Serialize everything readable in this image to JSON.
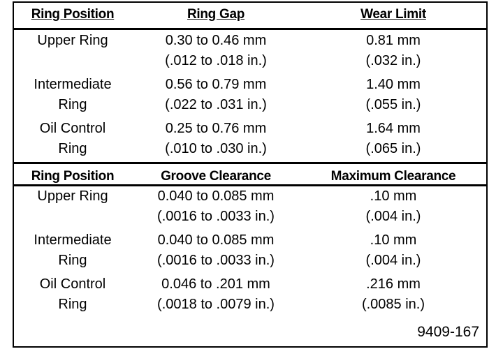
{
  "tables": [
    {
      "headers": [
        "Ring Position",
        "Ring Gap",
        "Wear Limit"
      ],
      "rows": [
        [
          [
            "Upper Ring"
          ],
          [
            "0.30 to 0.46 mm",
            "(.012 to .018 in.)"
          ],
          [
            "0.81 mm",
            "(.032 in.)"
          ]
        ],
        [
          [
            "Intermediate",
            "Ring"
          ],
          [
            "0.56 to 0.79 mm",
            "(.022 to .031 in.)"
          ],
          [
            "1.40 mm",
            "(.055 in.)"
          ]
        ],
        [
          [
            "Oil Control",
            "Ring"
          ],
          [
            "0.25 to 0.76 mm",
            "(.010 to .030 in.)"
          ],
          [
            "1.64 mm",
            "(.065 in.)"
          ]
        ]
      ]
    },
    {
      "headers": [
        "Ring Position",
        "Groove Clearance",
        "Maximum Clearance"
      ],
      "rows": [
        [
          [
            "Upper Ring"
          ],
          [
            "0.040 to 0.085 mm",
            "(.0016 to .0033 in.)"
          ],
          [
            ".10 mm",
            "(.004 in.)"
          ]
        ],
        [
          [
            "Intermediate",
            "Ring"
          ],
          [
            "0.040 to 0.085 mm",
            "(.0016 to .0033 in.)"
          ],
          [
            ".10 mm",
            "(.004 in.)"
          ]
        ],
        [
          [
            "Oil Control",
            "Ring"
          ],
          [
            "0.046 to .201 mm",
            "(.0018 to .0079 in.)"
          ],
          [
            ".216 mm",
            "(.0085 in.)"
          ]
        ]
      ]
    }
  ],
  "footer": "9409-167"
}
